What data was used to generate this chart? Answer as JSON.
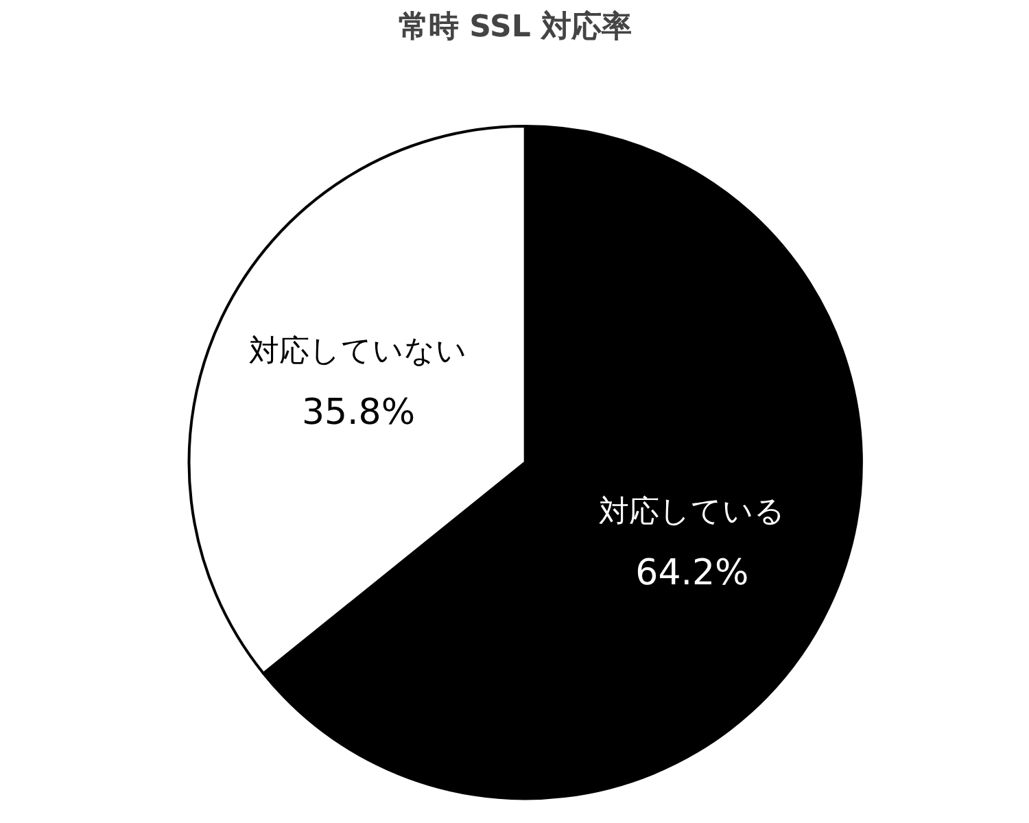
{
  "chart_data": {
    "type": "pie",
    "title": "常時 SSL 対応率",
    "categories": [
      "対応している",
      "対応していない"
    ],
    "values": [
      64.2,
      35.8
    ],
    "value_labels": [
      "64.2%",
      "35.8%"
    ],
    "colors": [
      "#000000",
      "#ffffff"
    ]
  }
}
